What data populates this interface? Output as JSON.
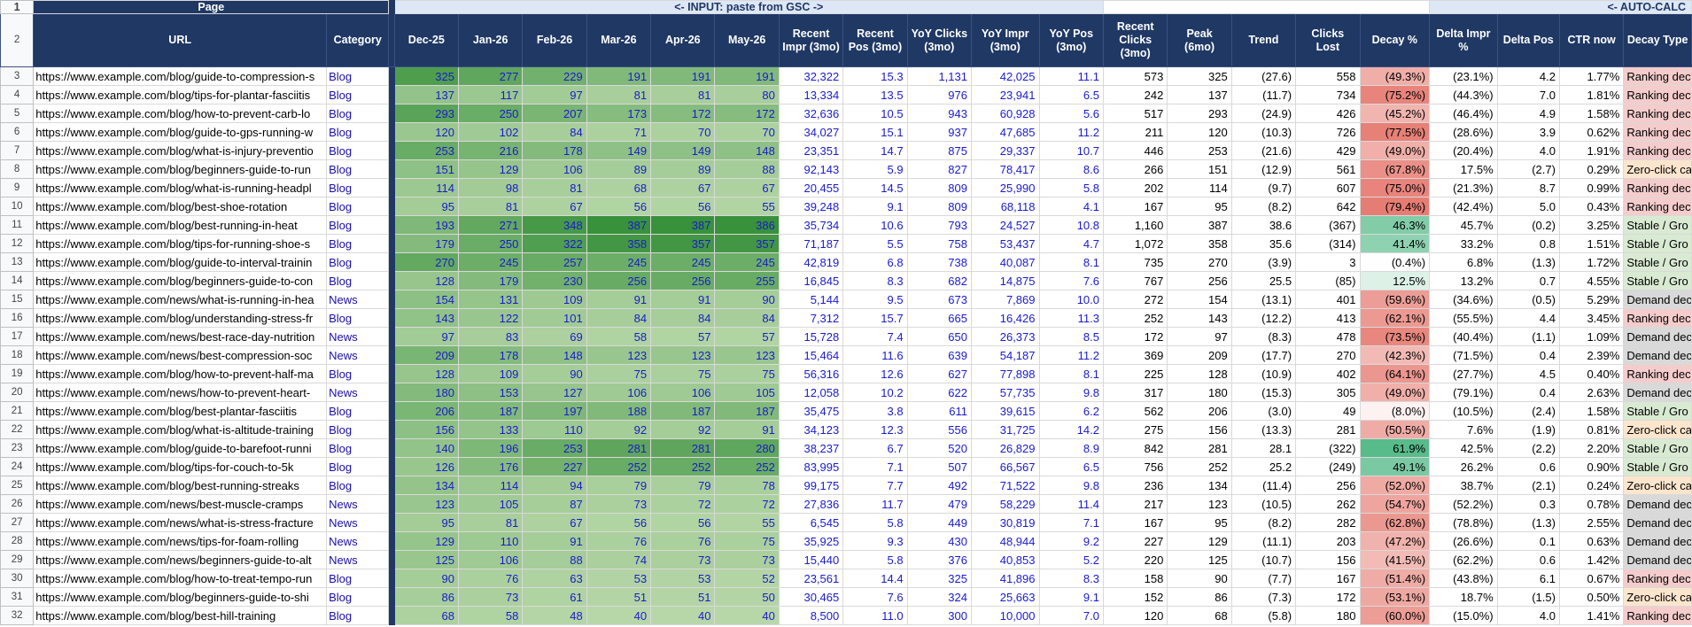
{
  "sheet": {
    "group_headers": {
      "page": "Page",
      "input": "<- INPUT: paste from GSC ->",
      "calc": "<- AUTO-CALC"
    },
    "columns": [
      "URL",
      "Category",
      "Dec-25",
      "Jan-26",
      "Feb-26",
      "Mar-26",
      "Apr-26",
      "May-26",
      "Recent Impr (3mo)",
      "Recent Pos (3mo)",
      "YoY Clicks (3mo)",
      "YoY Impr (3mo)",
      "YoY Pos (3mo)",
      "Recent Clicks (3mo)",
      "Peak (6mo)",
      "Trend",
      "Clicks Lost",
      "Decay %",
      "Delta Impr %",
      "Delta Pos",
      "CTR now",
      "Decay Type"
    ],
    "colors": {
      "header_bg": "#1f3864",
      "green_light": "#b7d7a8",
      "green_dark": "#38913b",
      "decay_red": "#e67c73",
      "decay_green": "#57bb8a",
      "type_ranking": "#f4cccc",
      "type_zeroclick": "#fce5cd",
      "type_stable": "#d9ead3",
      "type_demand": "#d9d9d9"
    },
    "rows": [
      {
        "n": "3",
        "url": "https://www.example.com/blog/guide-to-compression-s",
        "cat": "Blog",
        "m": [
          325,
          277,
          229,
          191,
          191,
          191
        ],
        "ri": "32,322",
        "rp": "15.3",
        "yc": "1,131",
        "yi": "42,025",
        "yp": "11.1",
        "rc": "573",
        "pk": "325",
        "tr": "(27.6)",
        "cl": "558",
        "dp": "(49.3%)",
        "dv": -49.3,
        "di": "(23.1%)",
        "dpos": "4.2",
        "ctr": "1.77%",
        "type": "Ranking dec"
      },
      {
        "n": "4",
        "url": "https://www.example.com/blog/tips-for-plantar-fasciitis",
        "cat": "Blog",
        "m": [
          137,
          117,
          97,
          81,
          81,
          80
        ],
        "ri": "13,334",
        "rp": "13.5",
        "yc": "976",
        "yi": "23,941",
        "yp": "6.5",
        "rc": "242",
        "pk": "137",
        "tr": "(11.7)",
        "cl": "734",
        "dp": "(75.2%)",
        "dv": -75.2,
        "di": "(44.3%)",
        "dpos": "7.0",
        "ctr": "1.81%",
        "type": "Ranking dec"
      },
      {
        "n": "5",
        "url": "https://www.example.com/blog/how-to-prevent-carb-lo",
        "cat": "Blog",
        "m": [
          293,
          250,
          207,
          173,
          172,
          172
        ],
        "ri": "32,636",
        "rp": "10.5",
        "yc": "943",
        "yi": "60,928",
        "yp": "5.6",
        "rc": "517",
        "pk": "293",
        "tr": "(24.9)",
        "cl": "426",
        "dp": "(45.2%)",
        "dv": -45.2,
        "di": "(46.4%)",
        "dpos": "4.9",
        "ctr": "1.58%",
        "type": "Ranking dec"
      },
      {
        "n": "6",
        "url": "https://www.example.com/blog/guide-to-gps-running-w",
        "cat": "Blog",
        "m": [
          120,
          102,
          84,
          71,
          70,
          70
        ],
        "ri": "34,027",
        "rp": "15.1",
        "yc": "937",
        "yi": "47,685",
        "yp": "11.2",
        "rc": "211",
        "pk": "120",
        "tr": "(10.3)",
        "cl": "726",
        "dp": "(77.5%)",
        "dv": -77.5,
        "di": "(28.6%)",
        "dpos": "3.9",
        "ctr": "0.62%",
        "type": "Ranking dec"
      },
      {
        "n": "7",
        "url": "https://www.example.com/blog/what-is-injury-preventio",
        "cat": "Blog",
        "m": [
          253,
          216,
          178,
          149,
          149,
          148
        ],
        "ri": "23,351",
        "rp": "14.7",
        "yc": "875",
        "yi": "29,337",
        "yp": "10.7",
        "rc": "446",
        "pk": "253",
        "tr": "(21.6)",
        "cl": "429",
        "dp": "(49.0%)",
        "dv": -49.0,
        "di": "(20.4%)",
        "dpos": "4.0",
        "ctr": "1.91%",
        "type": "Ranking dec"
      },
      {
        "n": "8",
        "url": "https://www.example.com/blog/beginners-guide-to-run",
        "cat": "Blog",
        "m": [
          151,
          129,
          106,
          89,
          89,
          88
        ],
        "ri": "92,143",
        "rp": "5.9",
        "yc": "827",
        "yi": "78,417",
        "yp": "8.6",
        "rc": "266",
        "pk": "151",
        "tr": "(12.9)",
        "cl": "561",
        "dp": "(67.8%)",
        "dv": -67.8,
        "di": "17.5%",
        "dpos": "(2.7)",
        "ctr": "0.29%",
        "type": "Zero-click ca"
      },
      {
        "n": "9",
        "url": "https://www.example.com/blog/what-is-running-headpl",
        "cat": "Blog",
        "m": [
          114,
          98,
          81,
          68,
          67,
          67
        ],
        "ri": "20,455",
        "rp": "14.5",
        "yc": "809",
        "yi": "25,990",
        "yp": "5.8",
        "rc": "202",
        "pk": "114",
        "tr": "(9.7)",
        "cl": "607",
        "dp": "(75.0%)",
        "dv": -75.0,
        "di": "(21.3%)",
        "dpos": "8.7",
        "ctr": "0.99%",
        "type": "Ranking dec"
      },
      {
        "n": "10",
        "url": "https://www.example.com/blog/best-shoe-rotation",
        "cat": "Blog",
        "m": [
          95,
          81,
          67,
          56,
          56,
          55
        ],
        "ri": "39,248",
        "rp": "9.1",
        "yc": "809",
        "yi": "68,118",
        "yp": "4.1",
        "rc": "167",
        "pk": "95",
        "tr": "(8.2)",
        "cl": "642",
        "dp": "(79.4%)",
        "dv": -79.4,
        "di": "(42.4%)",
        "dpos": "5.0",
        "ctr": "0.43%",
        "type": "Ranking dec"
      },
      {
        "n": "11",
        "url": "https://www.example.com/blog/best-running-in-heat",
        "cat": "Blog",
        "m": [
          193,
          271,
          348,
          387,
          387,
          386
        ],
        "ri": "35,734",
        "rp": "10.6",
        "yc": "793",
        "yi": "24,527",
        "yp": "10.8",
        "rc": "1,160",
        "pk": "387",
        "tr": "38.6",
        "cl": "(367)",
        "dp": "46.3%",
        "dv": 46.3,
        "di": "45.7%",
        "dpos": "(0.2)",
        "ctr": "3.25%",
        "type": "Stable / Gro"
      },
      {
        "n": "12",
        "url": "https://www.example.com/blog/tips-for-running-shoe-s",
        "cat": "Blog",
        "m": [
          179,
          250,
          322,
          358,
          357,
          357
        ],
        "ri": "71,187",
        "rp": "5.5",
        "yc": "758",
        "yi": "53,437",
        "yp": "4.7",
        "rc": "1,072",
        "pk": "358",
        "tr": "35.6",
        "cl": "(314)",
        "dp": "41.4%",
        "dv": 41.4,
        "di": "33.2%",
        "dpos": "0.8",
        "ctr": "1.51%",
        "type": "Stable / Gro"
      },
      {
        "n": "13",
        "url": "https://www.example.com/blog/guide-to-interval-trainin",
        "cat": "Blog",
        "m": [
          270,
          245,
          257,
          245,
          245,
          245
        ],
        "ri": "42,819",
        "rp": "6.8",
        "yc": "738",
        "yi": "40,087",
        "yp": "8.1",
        "rc": "735",
        "pk": "270",
        "tr": "(3.9)",
        "cl": "3",
        "dp": "(0.4%)",
        "dv": -0.4,
        "di": "6.8%",
        "dpos": "(1.3)",
        "ctr": "1.72%",
        "type": "Stable / Gro"
      },
      {
        "n": "14",
        "url": "https://www.example.com/blog/beginners-guide-to-con",
        "cat": "Blog",
        "m": [
          128,
          179,
          230,
          256,
          256,
          255
        ],
        "ri": "16,845",
        "rp": "8.3",
        "yc": "682",
        "yi": "14,875",
        "yp": "7.6",
        "rc": "767",
        "pk": "256",
        "tr": "25.5",
        "cl": "(85)",
        "dp": "12.5%",
        "dv": 12.5,
        "di": "13.2%",
        "dpos": "0.7",
        "ctr": "4.55%",
        "type": "Stable / Gro"
      },
      {
        "n": "15",
        "url": "https://www.example.com/news/what-is-running-in-hea",
        "cat": "News",
        "m": [
          154,
          131,
          109,
          91,
          91,
          90
        ],
        "ri": "5,144",
        "rp": "9.5",
        "yc": "673",
        "yi": "7,869",
        "yp": "10.0",
        "rc": "272",
        "pk": "154",
        "tr": "(13.1)",
        "cl": "401",
        "dp": "(59.6%)",
        "dv": -59.6,
        "di": "(34.6%)",
        "dpos": "(0.5)",
        "ctr": "5.29%",
        "type": "Demand dec"
      },
      {
        "n": "16",
        "url": "https://www.example.com/blog/understanding-stress-fr",
        "cat": "Blog",
        "m": [
          143,
          122,
          101,
          84,
          84,
          84
        ],
        "ri": "7,312",
        "rp": "15.7",
        "yc": "665",
        "yi": "16,426",
        "yp": "11.3",
        "rc": "252",
        "pk": "143",
        "tr": "(12.2)",
        "cl": "413",
        "dp": "(62.1%)",
        "dv": -62.1,
        "di": "(55.5%)",
        "dpos": "4.4",
        "ctr": "3.45%",
        "type": "Ranking dec"
      },
      {
        "n": "17",
        "url": "https://www.example.com/news/best-race-day-nutrition",
        "cat": "News",
        "m": [
          97,
          83,
          69,
          58,
          57,
          57
        ],
        "ri": "15,728",
        "rp": "7.4",
        "yc": "650",
        "yi": "26,373",
        "yp": "8.5",
        "rc": "172",
        "pk": "97",
        "tr": "(8.3)",
        "cl": "478",
        "dp": "(73.5%)",
        "dv": -73.5,
        "di": "(40.4%)",
        "dpos": "(1.1)",
        "ctr": "1.09%",
        "type": "Demand dec"
      },
      {
        "n": "18",
        "url": "https://www.example.com/news/best-compression-soc",
        "cat": "News",
        "m": [
          209,
          178,
          148,
          123,
          123,
          123
        ],
        "ri": "15,464",
        "rp": "11.6",
        "yc": "639",
        "yi": "54,187",
        "yp": "11.2",
        "rc": "369",
        "pk": "209",
        "tr": "(17.7)",
        "cl": "270",
        "dp": "(42.3%)",
        "dv": -42.3,
        "di": "(71.5%)",
        "dpos": "0.4",
        "ctr": "2.39%",
        "type": "Demand dec"
      },
      {
        "n": "19",
        "url": "https://www.example.com/blog/how-to-prevent-half-ma",
        "cat": "Blog",
        "m": [
          128,
          109,
          90,
          75,
          75,
          75
        ],
        "ri": "56,316",
        "rp": "12.6",
        "yc": "627",
        "yi": "77,898",
        "yp": "8.1",
        "rc": "225",
        "pk": "128",
        "tr": "(10.9)",
        "cl": "402",
        "dp": "(64.1%)",
        "dv": -64.1,
        "di": "(27.7%)",
        "dpos": "4.5",
        "ctr": "0.40%",
        "type": "Ranking dec"
      },
      {
        "n": "20",
        "url": "https://www.example.com/news/how-to-prevent-heart-",
        "cat": "News",
        "m": [
          180,
          153,
          127,
          106,
          106,
          105
        ],
        "ri": "12,058",
        "rp": "10.2",
        "yc": "622",
        "yi": "57,735",
        "yp": "9.8",
        "rc": "317",
        "pk": "180",
        "tr": "(15.3)",
        "cl": "305",
        "dp": "(49.0%)",
        "dv": -49.0,
        "di": "(79.1%)",
        "dpos": "0.4",
        "ctr": "2.63%",
        "type": "Demand dec"
      },
      {
        "n": "21",
        "url": "https://www.example.com/blog/best-plantar-fasciitis",
        "cat": "Blog",
        "m": [
          206,
          187,
          197,
          188,
          187,
          187
        ],
        "ri": "35,475",
        "rp": "3.8",
        "yc": "611",
        "yi": "39,615",
        "yp": "6.2",
        "rc": "562",
        "pk": "206",
        "tr": "(3.0)",
        "cl": "49",
        "dp": "(8.0%)",
        "dv": -8.0,
        "di": "(10.5%)",
        "dpos": "(2.4)",
        "ctr": "1.58%",
        "type": "Stable / Gro"
      },
      {
        "n": "22",
        "url": "https://www.example.com/blog/what-is-altitude-training",
        "cat": "Blog",
        "m": [
          156,
          133,
          110,
          92,
          92,
          91
        ],
        "ri": "34,123",
        "rp": "12.3",
        "yc": "556",
        "yi": "31,725",
        "yp": "14.2",
        "rc": "275",
        "pk": "156",
        "tr": "(13.3)",
        "cl": "281",
        "dp": "(50.5%)",
        "dv": -50.5,
        "di": "7.6%",
        "dpos": "(1.9)",
        "ctr": "0.81%",
        "type": "Zero-click ca"
      },
      {
        "n": "23",
        "url": "https://www.example.com/blog/guide-to-barefoot-runni",
        "cat": "Blog",
        "m": [
          140,
          196,
          253,
          281,
          281,
          280
        ],
        "ri": "38,237",
        "rp": "6.7",
        "yc": "520",
        "yi": "26,829",
        "yp": "8.9",
        "rc": "842",
        "pk": "281",
        "tr": "28.1",
        "cl": "(322)",
        "dp": "61.9%",
        "dv": 61.9,
        "di": "42.5%",
        "dpos": "(2.2)",
        "ctr": "2.20%",
        "type": "Stable / Gro"
      },
      {
        "n": "24",
        "url": "https://www.example.com/blog/tips-for-couch-to-5k",
        "cat": "Blog",
        "m": [
          126,
          176,
          227,
          252,
          252,
          252
        ],
        "ri": "83,995",
        "rp": "7.1",
        "yc": "507",
        "yi": "66,567",
        "yp": "6.5",
        "rc": "756",
        "pk": "252",
        "tr": "25.2",
        "cl": "(249)",
        "dp": "49.1%",
        "dv": 49.1,
        "di": "26.2%",
        "dpos": "0.6",
        "ctr": "0.90%",
        "type": "Stable / Gro"
      },
      {
        "n": "25",
        "url": "https://www.example.com/blog/best-running-streaks",
        "cat": "Blog",
        "m": [
          134,
          114,
          94,
          79,
          79,
          78
        ],
        "ri": "99,175",
        "rp": "7.7",
        "yc": "492",
        "yi": "71,522",
        "yp": "9.8",
        "rc": "236",
        "pk": "134",
        "tr": "(11.4)",
        "cl": "256",
        "dp": "(52.0%)",
        "dv": -52.0,
        "di": "38.7%",
        "dpos": "(2.1)",
        "ctr": "0.24%",
        "type": "Zero-click ca"
      },
      {
        "n": "26",
        "url": "https://www.example.com/news/best-muscle-cramps",
        "cat": "News",
        "m": [
          123,
          105,
          87,
          73,
          72,
          72
        ],
        "ri": "27,836",
        "rp": "11.7",
        "yc": "479",
        "yi": "58,229",
        "yp": "11.4",
        "rc": "217",
        "pk": "123",
        "tr": "(10.5)",
        "cl": "262",
        "dp": "(54.7%)",
        "dv": -54.7,
        "di": "(52.2%)",
        "dpos": "0.3",
        "ctr": "0.78%",
        "type": "Demand dec"
      },
      {
        "n": "27",
        "url": "https://www.example.com/news/what-is-stress-fracture",
        "cat": "News",
        "m": [
          95,
          81,
          67,
          56,
          56,
          55
        ],
        "ri": "6,545",
        "rp": "5.8",
        "yc": "449",
        "yi": "30,819",
        "yp": "7.1",
        "rc": "167",
        "pk": "95",
        "tr": "(8.2)",
        "cl": "282",
        "dp": "(62.8%)",
        "dv": -62.8,
        "di": "(78.8%)",
        "dpos": "(1.3)",
        "ctr": "2.55%",
        "type": "Demand dec"
      },
      {
        "n": "28",
        "url": "https://www.example.com/news/tips-for-foam-rolling",
        "cat": "News",
        "m": [
          129,
          110,
          91,
          76,
          76,
          75
        ],
        "ri": "35,925",
        "rp": "9.3",
        "yc": "430",
        "yi": "48,944",
        "yp": "9.2",
        "rc": "227",
        "pk": "129",
        "tr": "(11.1)",
        "cl": "203",
        "dp": "(47.2%)",
        "dv": -47.2,
        "di": "(26.6%)",
        "dpos": "0.1",
        "ctr": "0.63%",
        "type": "Demand dec"
      },
      {
        "n": "29",
        "url": "https://www.example.com/news/beginners-guide-to-alt",
        "cat": "News",
        "m": [
          125,
          106,
          88,
          74,
          73,
          73
        ],
        "ri": "15,440",
        "rp": "5.8",
        "yc": "376",
        "yi": "40,853",
        "yp": "5.2",
        "rc": "220",
        "pk": "125",
        "tr": "(10.7)",
        "cl": "156",
        "dp": "(41.5%)",
        "dv": -41.5,
        "di": "(62.2%)",
        "dpos": "0.6",
        "ctr": "1.42%",
        "type": "Demand dec"
      },
      {
        "n": "30",
        "url": "https://www.example.com/blog/how-to-treat-tempo-run",
        "cat": "Blog",
        "m": [
          90,
          76,
          63,
          53,
          53,
          52
        ],
        "ri": "23,561",
        "rp": "14.4",
        "yc": "325",
        "yi": "41,896",
        "yp": "8.3",
        "rc": "158",
        "pk": "90",
        "tr": "(7.7)",
        "cl": "167",
        "dp": "(51.4%)",
        "dv": -51.4,
        "di": "(43.8%)",
        "dpos": "6.1",
        "ctr": "0.67%",
        "type": "Ranking dec"
      },
      {
        "n": "31",
        "url": "https://www.example.com/blog/beginners-guide-to-shi",
        "cat": "Blog",
        "m": [
          86,
          73,
          61,
          51,
          51,
          50
        ],
        "ri": "30,465",
        "rp": "7.6",
        "yc": "324",
        "yi": "25,663",
        "yp": "9.1",
        "rc": "152",
        "pk": "86",
        "tr": "(7.3)",
        "cl": "172",
        "dp": "(53.1%)",
        "dv": -53.1,
        "di": "18.7%",
        "dpos": "(1.5)",
        "ctr": "0.50%",
        "type": "Zero-click ca"
      },
      {
        "n": "32",
        "url": "https://www.example.com/blog/best-hill-training",
        "cat": "Blog",
        "m": [
          68,
          58,
          48,
          40,
          40,
          40
        ],
        "ri": "8,500",
        "rp": "11.0",
        "yc": "300",
        "yi": "10,000",
        "yp": "7.0",
        "rc": "120",
        "pk": "68",
        "tr": "(5.8)",
        "cl": "180",
        "dp": "(60.0%)",
        "dv": -60.0,
        "di": "(15.0%)",
        "dpos": "4.0",
        "ctr": "1.41%",
        "type": "Ranking dec"
      }
    ]
  }
}
